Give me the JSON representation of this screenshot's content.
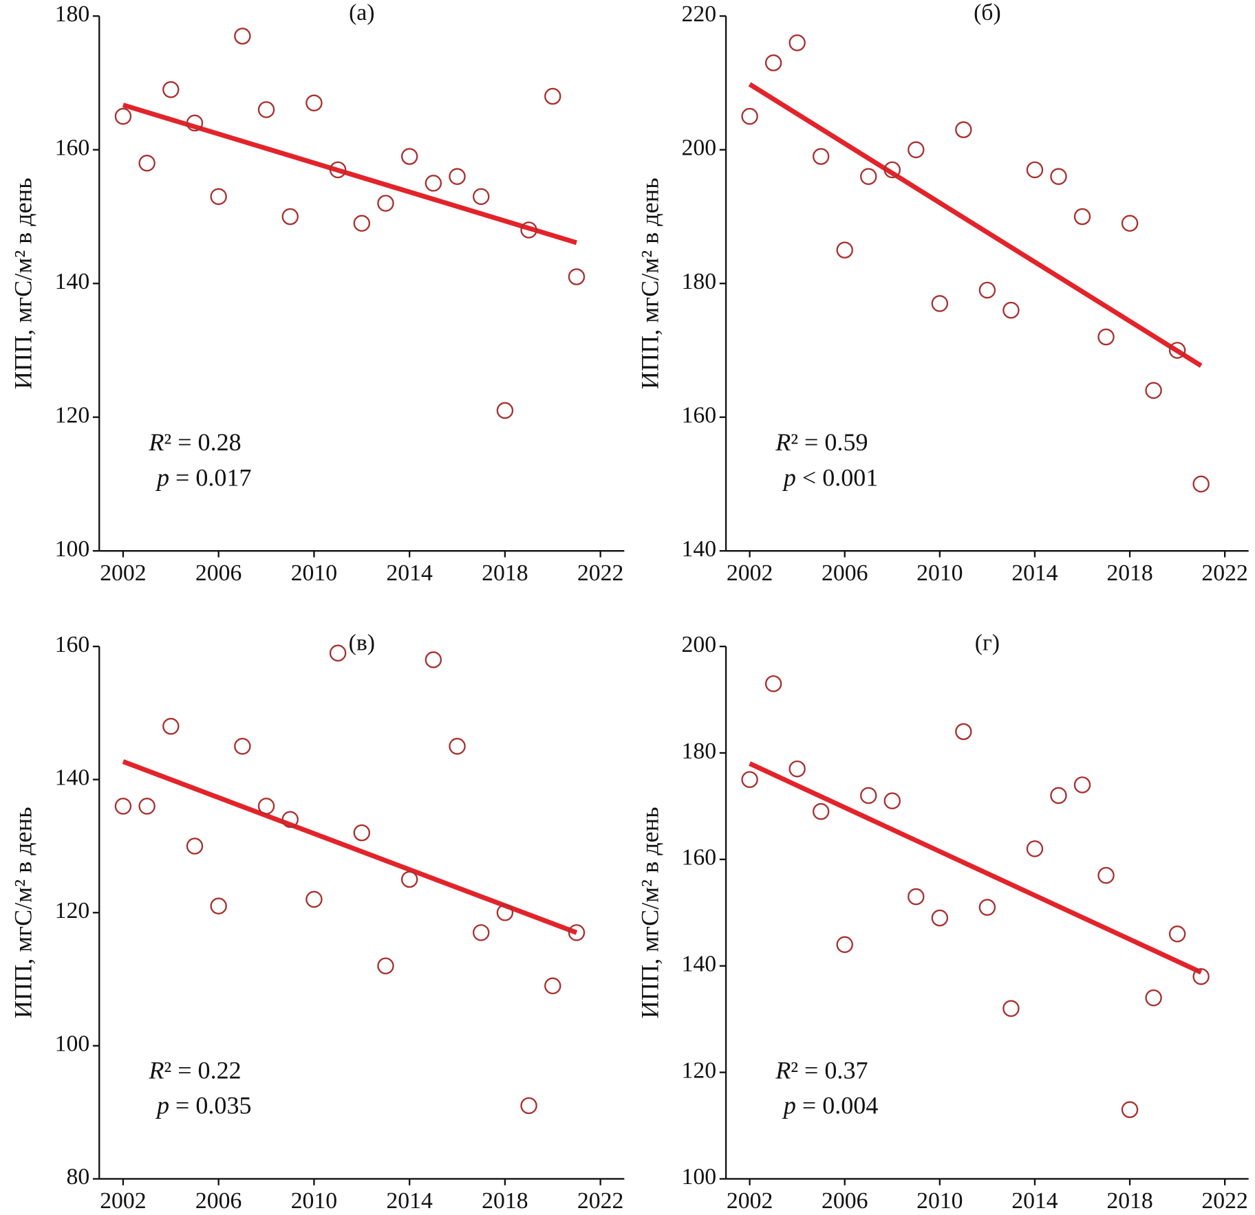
{
  "chart_data": [
    {
      "type": "scatter",
      "title": "(а)",
      "y_label": "ИПП, мгС/м² в день",
      "x": [
        2002,
        2003,
        2004,
        2005,
        2006,
        2007,
        2008,
        2009,
        2010,
        2011,
        2012,
        2013,
        2014,
        2015,
        2016,
        2017,
        2018,
        2019,
        2020,
        2021
      ],
      "values": [
        165,
        158,
        169,
        164,
        153,
        177,
        166,
        150,
        167,
        157,
        149,
        152,
        159,
        155,
        156,
        153,
        121,
        148,
        168,
        141
      ],
      "color": "#a8302e",
      "trendline": {
        "x": [
          2002,
          2021
        ],
        "values": [
          166.7,
          146.1
        ],
        "color": "#e3232a"
      },
      "annotations": [
        "R² = 0.28",
        "p = 0.017"
      ],
      "xlim": [
        2001,
        2023
      ],
      "ylim": [
        100,
        180
      ],
      "xticks": [
        2002,
        2006,
        2010,
        2014,
        2018,
        2022
      ],
      "yticks": [
        100,
        120,
        140,
        160,
        180
      ]
    },
    {
      "type": "scatter",
      "title": "(б)",
      "y_label": "ИПП, мгС/м² в день",
      "x": [
        2002,
        2003,
        2004,
        2005,
        2006,
        2007,
        2008,
        2009,
        2010,
        2011,
        2012,
        2013,
        2014,
        2015,
        2016,
        2017,
        2018,
        2019,
        2020,
        2021
      ],
      "values": [
        205,
        213,
        216,
        199,
        185,
        196,
        197,
        200,
        177,
        203,
        179,
        176,
        197,
        196,
        190,
        172,
        189,
        164,
        170,
        150
      ],
      "color": "#a8302e",
      "trendline": {
        "x": [
          2002,
          2021
        ],
        "values": [
          209.8,
          167.7
        ],
        "color": "#e3232a"
      },
      "annotations": [
        "R² = 0.59",
        "p < 0.001"
      ],
      "xlim": [
        2001,
        2023
      ],
      "ylim": [
        140,
        220
      ],
      "xticks": [
        2002,
        2006,
        2010,
        2014,
        2018,
        2022
      ],
      "yticks": [
        140,
        160,
        180,
        200,
        220
      ]
    },
    {
      "type": "scatter",
      "title": "(в)",
      "y_label": "ИПП, мгС/м² в день",
      "x": [
        2002,
        2003,
        2004,
        2005,
        2006,
        2007,
        2008,
        2009,
        2010,
        2011,
        2012,
        2013,
        2014,
        2015,
        2016,
        2017,
        2018,
        2019,
        2020,
        2021
      ],
      "values": [
        136,
        136,
        148,
        130,
        121,
        145,
        136,
        134,
        122,
        159,
        132,
        112,
        125,
        158,
        145,
        117,
        120,
        91,
        109,
        117
      ],
      "color": "#a8302e",
      "trendline": {
        "x": [
          2002,
          2021
        ],
        "values": [
          142.7,
          117
        ],
        "color": "#e3232a"
      },
      "annotations": [
        "R² = 0.22",
        "p = 0.035"
      ],
      "xlim": [
        2001,
        2023
      ],
      "ylim": [
        80,
        160
      ],
      "xticks": [
        2002,
        2006,
        2010,
        2014,
        2018,
        2022
      ],
      "yticks": [
        80,
        100,
        120,
        140,
        160
      ]
    },
    {
      "type": "scatter",
      "title": "(г)",
      "y_label": "ИПП, мгС/м² в день",
      "x": [
        2002,
        2003,
        2004,
        2005,
        2006,
        2007,
        2008,
        2009,
        2010,
        2011,
        2012,
        2013,
        2014,
        2015,
        2016,
        2017,
        2018,
        2019,
        2020,
        2021
      ],
      "values": [
        175,
        193,
        177,
        169,
        144,
        172,
        171,
        153,
        149,
        184,
        151,
        132,
        162,
        172,
        174,
        157,
        113,
        134,
        146,
        138
      ],
      "color": "#a8302e",
      "trendline": {
        "x": [
          2002,
          2021
        ],
        "values": [
          178,
          138.8
        ],
        "color": "#e3232a"
      },
      "annotations": [
        "R² = 0.37",
        "p = 0.004"
      ],
      "xlim": [
        2001,
        2023
      ],
      "ylim": [
        100,
        200
      ],
      "xticks": [
        2002,
        2006,
        2010,
        2014,
        2018,
        2022
      ],
      "yticks": [
        100,
        120,
        140,
        160,
        180,
        200
      ]
    }
  ]
}
